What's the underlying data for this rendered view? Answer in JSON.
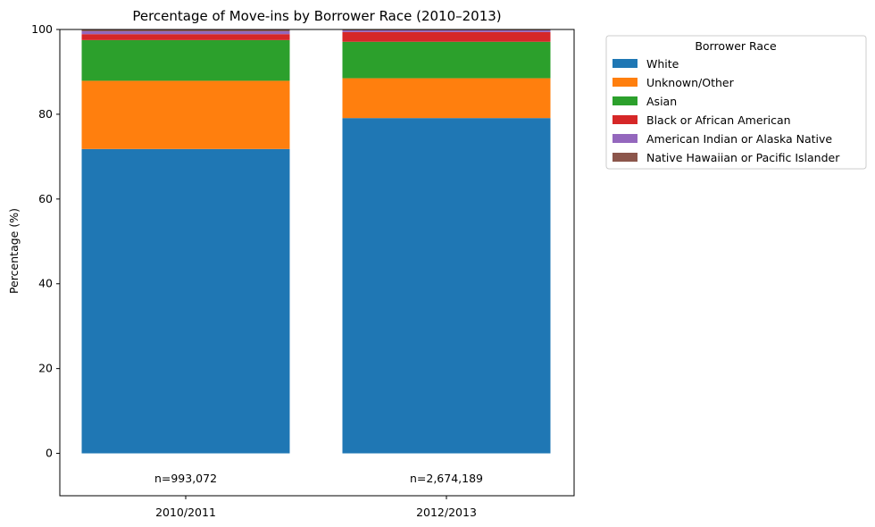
{
  "chart_data": {
    "type": "bar",
    "stacked": true,
    "title": "Percentage of Move-ins by Borrower Race (2010–2013)",
    "xlabel": "",
    "ylabel": "Percentage (%)",
    "ylim": [
      -10,
      100
    ],
    "yticks": [
      0,
      20,
      40,
      60,
      80,
      100
    ],
    "categories": [
      "2010/2011",
      "2012/2013"
    ],
    "annotations": [
      "n=993,072",
      "n=2,674,189"
    ],
    "legend": {
      "title": "Borrower Race",
      "placement": "outside-right"
    },
    "grid": false,
    "series": [
      {
        "name": "White",
        "color": "#1f77b4",
        "values": [
          71.8,
          79.1
        ]
      },
      {
        "name": "Unknown/Other",
        "color": "#ff7f0e",
        "values": [
          16.1,
          9.4
        ]
      },
      {
        "name": "Asian",
        "color": "#2ca02c",
        "values": [
          9.6,
          8.6
        ]
      },
      {
        "name": "Black or African American",
        "color": "#d62728",
        "values": [
          1.4,
          2.3
        ]
      },
      {
        "name": "American Indian or Alaska Native",
        "color": "#9467bd",
        "values": [
          0.7,
          0.4
        ]
      },
      {
        "name": "Native Hawaiian or Pacific Islander",
        "color": "#8c564b",
        "values": [
          0.4,
          0.2
        ]
      }
    ]
  }
}
